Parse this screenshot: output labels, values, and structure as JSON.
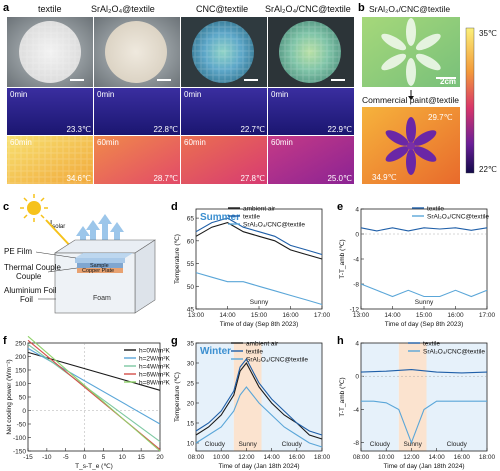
{
  "colors": {
    "ambient": "#1a1a1a",
    "textile": "#1f5fa8",
    "coated": "#5aa6d8",
    "summer_title": "#3b8fd0",
    "winter_title": "#3b8fd0",
    "sunny_bg": "#fbe3cf",
    "cloudy_bg": "#e6f1fa",
    "temp_hot": "#f7d548",
    "temp_cold": "#2a1e8f"
  },
  "panels": {
    "a": {
      "label": "a",
      "columns": [
        "textile",
        "SrAl₂O₄@textile",
        "CNC@textile",
        "SrAl₂O₄/CNC@textile"
      ],
      "time_0": "0min",
      "time_60": "60min",
      "temps_0": [
        "23.3℃",
        "22.8℃",
        "22.7℃",
        "22.9℃"
      ],
      "temps_60": [
        "34.6℃",
        "28.7℃",
        "27.8℃",
        "25.0℃"
      ]
    },
    "b": {
      "label": "b",
      "top_label": "SrAl₂O₄/CNC@textile",
      "bottom_label": "Commercial paint@textile",
      "scale": "2cm",
      "temp_top": "29.7℃",
      "temp_bottom": "34.9℃",
      "colorbar_max": "35℃",
      "colorbar_min": "22℃"
    },
    "c": {
      "label": "c",
      "solar": "I",
      "solar_sub": "solar",
      "layers": [
        "PE Film",
        "Thermal Couple",
        "Aluminium Foil"
      ],
      "sample": "Sample",
      "copper": "Copper Plate",
      "foam": "Foam"
    }
  },
  "chart_data": [
    {
      "panel": "d",
      "type": "line",
      "title": "Summer",
      "xlabel": "Time of day (Sep 8th 2023)",
      "ylabel": "Temperature (℃)",
      "x_ticks": [
        "13:00",
        "14:00",
        "15:00",
        "16:00",
        "17:00"
      ],
      "y_ticks": [
        45,
        50,
        55,
        60,
        65
      ],
      "ylim": [
        45,
        67
      ],
      "annotation": "Sunny",
      "legend": [
        "ambient air",
        "textile",
        "SrAl₂O₄/CNC@textile"
      ],
      "series": [
        {
          "name": "ambient air",
          "x": [
            13.0,
            13.5,
            14.0,
            14.5,
            15.0,
            15.5,
            16.0,
            16.5,
            17.0
          ],
          "values": [
            61,
            63,
            64,
            62,
            61,
            60,
            58,
            57,
            56
          ]
        },
        {
          "name": "textile",
          "x": [
            13.0,
            13.5,
            14.0,
            14.5,
            15.0,
            15.5,
            16.0,
            16.5,
            17.0
          ],
          "values": [
            62,
            64,
            65,
            63,
            62,
            61,
            59,
            58,
            57
          ]
        },
        {
          "name": "SrAl₂O₄/CNC@textile",
          "x": [
            13.0,
            13.5,
            14.0,
            14.5,
            15.0,
            15.5,
            16.0,
            16.5,
            17.0
          ],
          "values": [
            53,
            52,
            51,
            51,
            50,
            49,
            48,
            47,
            46
          ]
        }
      ]
    },
    {
      "panel": "e",
      "type": "line",
      "xlabel": "Time of day (Sep 8th 2023)",
      "ylabel": "T-T_amb (℃)",
      "x_ticks": [
        "13:00",
        "14:00",
        "15:00",
        "16:00",
        "17:00"
      ],
      "y_ticks": [
        -12,
        -8,
        -4,
        0,
        4
      ],
      "ylim": [
        -12,
        4
      ],
      "annotation": "Sunny",
      "legend": [
        "textile",
        "SrAl₂O₄/CNC@textile"
      ],
      "series": [
        {
          "name": "textile",
          "x": [
            13.0,
            13.5,
            14.0,
            14.5,
            15.0,
            15.5,
            16.0,
            16.5,
            17.0
          ],
          "values": [
            1,
            0.5,
            1,
            0.5,
            1,
            0.8,
            1,
            0.6,
            1
          ]
        },
        {
          "name": "SrAl₂O₄/CNC@textile",
          "x": [
            13.0,
            13.5,
            14.0,
            14.5,
            15.0,
            15.5,
            16.0,
            16.5,
            17.0
          ],
          "values": [
            -8,
            -9,
            -10,
            -9,
            -10,
            -10,
            -9,
            -10,
            -9
          ]
        }
      ]
    },
    {
      "panel": "f",
      "type": "line",
      "xlabel": "T_s-T_e (℃)",
      "ylabel": "Net cooling power (Wm⁻²)",
      "x_ticks": [
        -15,
        -10,
        -5,
        0,
        5,
        10,
        15,
        20
      ],
      "y_ticks": [
        -150,
        -100,
        -50,
        0,
        50,
        100,
        150,
        200,
        250
      ],
      "xlim": [
        -15,
        20
      ],
      "ylim": [
        -150,
        250
      ],
      "legend": [
        "h=0W/m²K",
        "h=2W/m²K",
        "h=4W/m²K",
        "h=6W/m²K",
        "h=8W/m²K"
      ],
      "series": [
        {
          "name": "h=0W/m²K",
          "x": [
            -15,
            20
          ],
          "values": [
            215,
            75
          ]
        },
        {
          "name": "h=2W/m²K",
          "x": [
            -15,
            20
          ],
          "values": [
            230,
            -50
          ]
        },
        {
          "name": "h=4W/m²K",
          "x": [
            -15,
            20
          ],
          "values": [
            245,
            -115
          ]
        },
        {
          "name": "h=6W/m²K",
          "x": [
            -15,
            20
          ],
          "values": [
            260,
            -145
          ]
        },
        {
          "name": "h=8W/m²K",
          "x": [
            -15,
            20
          ],
          "values": [
            275,
            -150
          ]
        }
      ]
    },
    {
      "panel": "g",
      "type": "line",
      "title": "Winter",
      "xlabel": "Time of day (Jan 18th 2024)",
      "ylabel": "Temperature (℃)",
      "x_ticks": [
        "08:00",
        "10:00",
        "12:00",
        "14:00",
        "16:00",
        "18:00"
      ],
      "y_ticks": [
        10,
        15,
        20,
        25,
        30,
        35
      ],
      "ylim": [
        8,
        35
      ],
      "annotations": [
        "Cloudy",
        "Sunny",
        "Cloudy"
      ],
      "legend": [
        "ambient air",
        "textile",
        "SrAl₂O₄/CNC@textile"
      ],
      "series": [
        {
          "name": "ambient air",
          "x": [
            8,
            9,
            10,
            11,
            11.5,
            12,
            12.5,
            13,
            14,
            15,
            16,
            17,
            18
          ],
          "values": [
            12,
            14,
            17,
            22,
            28,
            30,
            27,
            24,
            20,
            17,
            15,
            12,
            11
          ]
        },
        {
          "name": "textile",
          "x": [
            8,
            9,
            10,
            11,
            11.5,
            12,
            12.5,
            13,
            14,
            15,
            16,
            17,
            18
          ],
          "values": [
            13,
            15,
            18,
            23,
            29,
            31,
            28,
            25,
            21,
            18,
            15,
            13,
            12
          ]
        },
        {
          "name": "SrAl₂O₄/CNC@textile",
          "x": [
            8,
            9,
            10,
            11,
            11.5,
            12,
            12.5,
            13,
            14,
            15,
            16,
            17,
            18
          ],
          "values": [
            10,
            12,
            14,
            18,
            22,
            24,
            22,
            20,
            17,
            14,
            12,
            10,
            9
          ]
        }
      ]
    },
    {
      "panel": "h",
      "type": "line",
      "xlabel": "Time of day (Jan 18th 2024)",
      "ylabel": "T-T_amb (℃)",
      "x_ticks": [
        "08:00",
        "10:00",
        "12:00",
        "14:00",
        "16:00",
        "18:00"
      ],
      "y_ticks": [
        -8,
        -4,
        0,
        4
      ],
      "ylim": [
        -9,
        4
      ],
      "annotations": [
        "Cloudy",
        "Sunny",
        "Cloudy"
      ],
      "legend": [
        "textile",
        "SrAl₂O₄/CNC@textile"
      ],
      "series": [
        {
          "name": "textile",
          "x": [
            8,
            10,
            12,
            14,
            16,
            18
          ],
          "values": [
            0.5,
            0.6,
            0.8,
            0.5,
            0.4,
            0.5
          ]
        },
        {
          "name": "SrAl₂O₄/CNC@textile",
          "x": [
            8,
            9,
            10,
            11,
            11.5,
            12,
            12.5,
            13,
            14,
            15,
            16,
            17,
            18
          ],
          "values": [
            -3,
            -3,
            -3.2,
            -4,
            -6,
            -8,
            -6,
            -4,
            -3,
            -3,
            -3,
            -3,
            -3
          ]
        }
      ]
    }
  ]
}
